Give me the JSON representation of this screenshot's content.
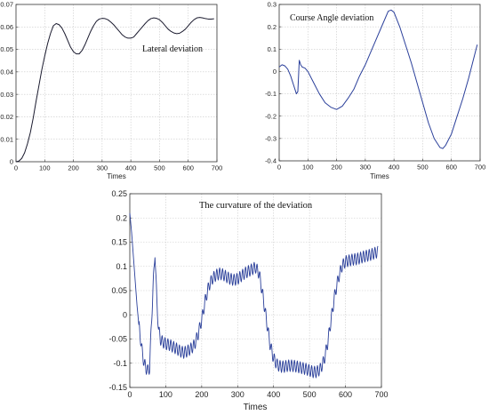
{
  "chart_data": [
    {
      "type": "line",
      "title": "Lateral deviation",
      "xlabel": "Times",
      "ylabel": "",
      "xlim": [
        0,
        700
      ],
      "ylim": [
        0,
        0.07
      ],
      "xticks": [
        0,
        100,
        200,
        300,
        400,
        500,
        600,
        700
      ],
      "yticks": [
        0,
        0.01,
        0.02,
        0.03,
        0.04,
        0.05,
        0.06,
        0.07
      ],
      "ytick_labels": [
        "0",
        "0.01",
        "0.02",
        "0.03",
        "0.04",
        "0.05",
        "0.06",
        "0.07"
      ],
      "grid": true,
      "line_color": "#1a1a2e",
      "series": [
        {
          "x": [
            0,
            10,
            20,
            30,
            40,
            50,
            60,
            70,
            80,
            90,
            100,
            110,
            120,
            130,
            140,
            150,
            160,
            170,
            180,
            190,
            200,
            210,
            220,
            230,
            240,
            250,
            260,
            270,
            280,
            290,
            300,
            310,
            320,
            330,
            340,
            350,
            360,
            370,
            380,
            390,
            400,
            410,
            420,
            430,
            440,
            450,
            460,
            470,
            480,
            490,
            500,
            510,
            520,
            530,
            540,
            550,
            560,
            570,
            580,
            590,
            600,
            610,
            620,
            630,
            640,
            650,
            660,
            670,
            680,
            690
          ],
          "y": [
            0,
            0.0003,
            0.0015,
            0.004,
            0.008,
            0.013,
            0.0195,
            0.027,
            0.034,
            0.041,
            0.047,
            0.0525,
            0.057,
            0.0605,
            0.0615,
            0.061,
            0.0595,
            0.057,
            0.054,
            0.051,
            0.049,
            0.048,
            0.048,
            0.0495,
            0.052,
            0.055,
            0.058,
            0.0605,
            0.0625,
            0.0635,
            0.0638,
            0.0637,
            0.0632,
            0.0622,
            0.061,
            0.0595,
            0.058,
            0.0565,
            0.0555,
            0.055,
            0.055,
            0.0555,
            0.057,
            0.0585,
            0.06,
            0.0615,
            0.0628,
            0.0637,
            0.064,
            0.0638,
            0.0632,
            0.062,
            0.0605,
            0.059,
            0.058,
            0.0573,
            0.057,
            0.0572,
            0.058,
            0.059,
            0.0605,
            0.062,
            0.0632,
            0.064,
            0.0642,
            0.064,
            0.0637,
            0.0635,
            0.0635,
            0.0636
          ]
        }
      ]
    },
    {
      "type": "line",
      "title": "Course Angle deviation",
      "xlabel": "Times",
      "ylabel": "",
      "xlim": [
        0,
        700
      ],
      "ylim": [
        -0.4,
        0.3
      ],
      "xticks": [
        0,
        100,
        200,
        300,
        400,
        500,
        600,
        700
      ],
      "yticks": [
        -0.4,
        -0.3,
        -0.2,
        -0.1,
        0,
        0.1,
        0.2,
        0.3
      ],
      "ytick_labels": [
        "-0.4",
        "-0.3",
        "-0.2",
        "-0.1",
        "0",
        "0.1",
        "0.2",
        "0.3"
      ],
      "grid": true,
      "line_color": "#2a3f9a",
      "series": [
        {
          "x": [
            0,
            10,
            20,
            30,
            40,
            50,
            60,
            65,
            70,
            75,
            80,
            90,
            100,
            120,
            140,
            160,
            180,
            200,
            220,
            240,
            260,
            280,
            300,
            320,
            340,
            360,
            380,
            390,
            400,
            420,
            440,
            460,
            480,
            500,
            520,
            540,
            560,
            570,
            580,
            600,
            620,
            640,
            660,
            680,
            690
          ],
          "y": [
            0.02,
            0.03,
            0.025,
            0.01,
            -0.02,
            -0.06,
            -0.1,
            -0.09,
            0.05,
            0.03,
            0.02,
            0.015,
            0.0,
            -0.05,
            -0.1,
            -0.14,
            -0.16,
            -0.17,
            -0.155,
            -0.12,
            -0.08,
            -0.02,
            0.03,
            0.09,
            0.15,
            0.21,
            0.27,
            0.275,
            0.265,
            0.2,
            0.12,
            0.04,
            -0.05,
            -0.14,
            -0.23,
            -0.3,
            -0.34,
            -0.345,
            -0.33,
            -0.28,
            -0.2,
            -0.12,
            -0.03,
            0.07,
            0.12
          ]
        }
      ]
    },
    {
      "type": "line",
      "title": "The curvature of the deviation",
      "xlabel": "Times",
      "ylabel": "",
      "xlim": [
        0,
        700
      ],
      "ylim": [
        -0.15,
        0.25
      ],
      "xticks": [
        0,
        100,
        200,
        300,
        400,
        500,
        600,
        700
      ],
      "yticks": [
        -0.15,
        -0.1,
        -0.05,
        0,
        0.05,
        0.1,
        0.15,
        0.2,
        0.25
      ],
      "ytick_labels": [
        "-0.15",
        "-0.1",
        "-0.05",
        "0",
        "0.05",
        "0.1",
        "0.15",
        "0.2",
        "0.25"
      ],
      "grid": true,
      "line_color": "#2a3f9a",
      "oscillation_amplitude": 0.012,
      "oscillation_period": 8,
      "series": [
        {
          "x": [
            0,
            5,
            10,
            15,
            20,
            25,
            30,
            35,
            40,
            45,
            50,
            55,
            60,
            65,
            70,
            75,
            80,
            85,
            90,
            100,
            110,
            120,
            130,
            140,
            150,
            160,
            170,
            180,
            190,
            200,
            210,
            220,
            230,
            240,
            250,
            260,
            270,
            280,
            290,
            300,
            310,
            320,
            330,
            340,
            350,
            360,
            370,
            380,
            390,
            400,
            410,
            420,
            430,
            440,
            450,
            460,
            470,
            480,
            490,
            500,
            510,
            520,
            530,
            540,
            550,
            560,
            570,
            580,
            590,
            600,
            610,
            620,
            630,
            640,
            650,
            660,
            670,
            680,
            690
          ],
          "y": [
            0.21,
            0.17,
            0.12,
            0.07,
            0.02,
            -0.02,
            -0.05,
            -0.08,
            -0.1,
            -0.11,
            -0.115,
            -0.11,
            -0.02,
            0.06,
            0.13,
            0.03,
            -0.03,
            -0.05,
            -0.055,
            -0.06,
            -0.062,
            -0.066,
            -0.07,
            -0.075,
            -0.078,
            -0.075,
            -0.07,
            -0.062,
            -0.04,
            -0.01,
            0.03,
            0.06,
            0.075,
            0.082,
            0.085,
            0.083,
            0.078,
            0.074,
            0.072,
            0.074,
            0.08,
            0.086,
            0.09,
            0.094,
            0.098,
            0.085,
            0.04,
            -0.01,
            -0.06,
            -0.09,
            -0.103,
            -0.107,
            -0.107,
            -0.105,
            -0.105,
            -0.106,
            -0.108,
            -0.11,
            -0.112,
            -0.115,
            -0.118,
            -0.118,
            -0.112,
            -0.095,
            -0.06,
            -0.01,
            0.04,
            0.075,
            0.1,
            0.11,
            0.112,
            0.114,
            0.115,
            0.117,
            0.12,
            0.122,
            0.124,
            0.127,
            0.13
          ]
        }
      ]
    }
  ]
}
